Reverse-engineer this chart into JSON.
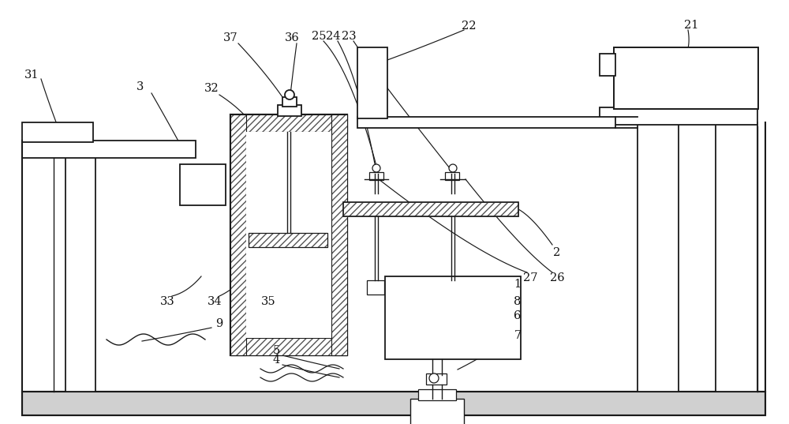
{
  "bg_color": "#ffffff",
  "line_color": "#333333",
  "figsize": [
    10.0,
    5.37
  ],
  "dpi": 100
}
